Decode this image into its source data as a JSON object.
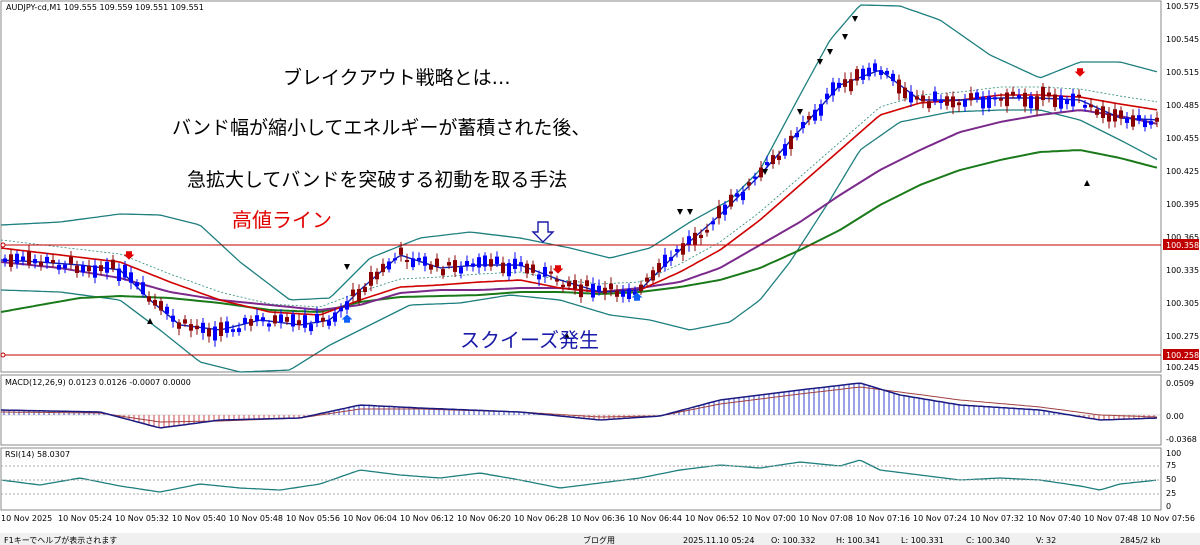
{
  "symbol_header": "AUDJPY-cd,M1  109.555 109.559 109.551 109.551",
  "price_axis": [
    "100.575",
    "100.545",
    "100.515",
    "100.485",
    "100.455",
    "100.425",
    "100.395",
    "100.365",
    "100.335",
    "100.305",
    "100.275",
    "100.245"
  ],
  "level_tags": {
    "high": "100.358",
    "low": "100.258"
  },
  "macd": {
    "header": "MACD(12,26,9) 0.0123 0.0126 -0.0007 0.0000",
    "ticks": [
      "0.0509",
      "0.00",
      "-0.0368"
    ]
  },
  "rsi": {
    "header": "RSI(14) 58.0307",
    "ticks": [
      "100",
      "75",
      "50",
      "25",
      "0"
    ]
  },
  "time_axis": [
    "10 Nov 2025",
    "10 Nov 05:24",
    "10 Nov 05:32",
    "10 Nov 05:40",
    "10 Nov 05:48",
    "10 Nov 05:56",
    "10 Nov 06:04",
    "10 Nov 06:12",
    "10 Nov 06:20",
    "10 Nov 06:28",
    "10 Nov 06:36",
    "10 Nov 06:44",
    "10 Nov 06:52",
    "10 Nov 07:00",
    "10 Nov 07:08",
    "10 Nov 07:16",
    "10 Nov 07:24",
    "10 Nov 07:32",
    "10 Nov 07:40",
    "10 Nov 07:48",
    "10 Nov 07:56"
  ],
  "annotations": {
    "line1": "ブレイクアウト戦略とは…",
    "line2": "バンド幅が縮小してエネルギーが蓄積された後、",
    "line3": "急拡大してバンドを突破する初動を取る手法",
    "high_line": "高値ライン",
    "squeeze": "スクイーズ発生"
  },
  "status_bar": {
    "help": "F1キーでヘルプが表示されます",
    "profile": "ブログ用",
    "datetime": "2025.11.10 05:24",
    "open": "O: 100.332",
    "high": "H: 100.341",
    "low": "L: 100.331",
    "close": "C: 100.340",
    "volume": "V: 32",
    "traffic": "2845/2 kb"
  },
  "colors": {
    "bull": "#0000ff",
    "bear": "#8b0000",
    "upper_band": "#1e7f7f",
    "ma_red": "#d00000",
    "ma_purple": "#7b2a8b",
    "ma_green": "#1a7a1a",
    "level": "#c00000",
    "arrow_red": "#e00000",
    "arrow_blue": "#1060ff"
  }
}
